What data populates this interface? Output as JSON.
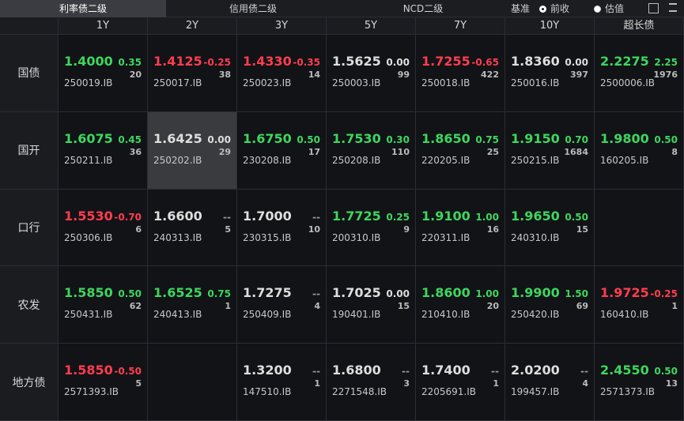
{
  "tabs": [
    {
      "label": "利率债二级",
      "active": true
    },
    {
      "label": "信用债二级",
      "active": false
    },
    {
      "label": "NCD二级",
      "active": false
    }
  ],
  "basis": {
    "label": "基准",
    "options": [
      {
        "label": "前收",
        "selected": true
      },
      {
        "label": "估值",
        "selected": false
      }
    ]
  },
  "table": {
    "columns": [
      "1Y",
      "2Y",
      "3Y",
      "5Y",
      "7Y",
      "10Y",
      "超长债"
    ],
    "rows": [
      {
        "label": "国债",
        "cells": [
          {
            "yield": "1.4000",
            "change": "0.35",
            "volume": "20",
            "code": "250019.IB"
          },
          {
            "yield": "1.4125",
            "change": "-0.25",
            "volume": "38",
            "code": "250017.IB"
          },
          {
            "yield": "1.4330",
            "change": "-0.35",
            "volume": "14",
            "code": "250023.IB"
          },
          {
            "yield": "1.5625",
            "change": "0.00",
            "volume": "99",
            "code": "250003.IB"
          },
          {
            "yield": "1.7255",
            "change": "-0.65",
            "volume": "422",
            "code": "250018.IB"
          },
          {
            "yield": "1.8360",
            "change": "0.00",
            "volume": "397",
            "code": "250016.IB"
          },
          {
            "yield": "2.2275",
            "change": "2.25",
            "volume": "1976",
            "code": "2500006.IB"
          }
        ]
      },
      {
        "label": "国开",
        "cells": [
          {
            "yield": "1.6075",
            "change": "0.45",
            "volume": "36",
            "code": "250211.IB"
          },
          {
            "yield": "1.6425",
            "change": "0.00",
            "volume": "29",
            "code": "250202.IB",
            "selected": true
          },
          {
            "yield": "1.6750",
            "change": "0.50",
            "volume": "17",
            "code": "230208.IB"
          },
          {
            "yield": "1.7530",
            "change": "0.30",
            "volume": "110",
            "code": "250208.IB"
          },
          {
            "yield": "1.8650",
            "change": "0.75",
            "volume": "25",
            "code": "220205.IB"
          },
          {
            "yield": "1.9150",
            "change": "0.70",
            "volume": "1684",
            "code": "250215.IB"
          },
          {
            "yield": "1.9800",
            "change": "0.50",
            "volume": "8",
            "code": "160205.IB"
          }
        ]
      },
      {
        "label": "口行",
        "cells": [
          {
            "yield": "1.5530",
            "change": "-0.70",
            "volume": "6",
            "code": "250306.IB"
          },
          {
            "yield": "1.6600",
            "change": "--",
            "volume": "5",
            "code": "240313.IB"
          },
          {
            "yield": "1.7000",
            "change": "--",
            "volume": "10",
            "code": "230315.IB"
          },
          {
            "yield": "1.7725",
            "change": "0.25",
            "volume": "9",
            "code": "200310.IB"
          },
          {
            "yield": "1.9100",
            "change": "1.00",
            "volume": "16",
            "code": "220311.IB"
          },
          {
            "yield": "1.9650",
            "change": "0.50",
            "volume": "15",
            "code": "240310.IB"
          },
          null
        ]
      },
      {
        "label": "农发",
        "cells": [
          {
            "yield": "1.5850",
            "change": "0.50",
            "volume": "62",
            "code": "250431.IB"
          },
          {
            "yield": "1.6525",
            "change": "0.75",
            "volume": "1",
            "code": "240413.IB"
          },
          {
            "yield": "1.7275",
            "change": "--",
            "volume": "4",
            "code": "250409.IB"
          },
          {
            "yield": "1.7025",
            "change": "0.00",
            "volume": "15",
            "code": "190401.IB"
          },
          {
            "yield": "1.8600",
            "change": "1.00",
            "volume": "20",
            "code": "210410.IB"
          },
          {
            "yield": "1.9900",
            "change": "1.50",
            "volume": "69",
            "code": "250420.IB"
          },
          {
            "yield": "1.9725",
            "change": "-0.25",
            "volume": "1",
            "code": "160410.IB"
          }
        ]
      },
      {
        "label": "地方债",
        "cells": [
          {
            "yield": "1.5850",
            "change": "-0.50",
            "volume": "5",
            "code": "2571393.IB"
          },
          null,
          {
            "yield": "1.3200",
            "change": "--",
            "volume": "1",
            "code": "147510.IB"
          },
          {
            "yield": "1.6800",
            "change": "--",
            "volume": "3",
            "code": "2271548.IB"
          },
          {
            "yield": "1.7400",
            "change": "--",
            "volume": "1",
            "code": "2205691.IB"
          },
          {
            "yield": "2.0200",
            "change": "--",
            "volume": "4",
            "code": "199457.IB"
          },
          {
            "yield": "2.4550",
            "change": "0.50",
            "volume": "13",
            "code": "2571373.IB"
          }
        ]
      }
    ]
  }
}
